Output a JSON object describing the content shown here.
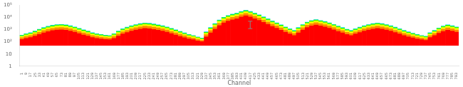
{
  "chart_data": {
    "type": "bar",
    "stacked": true,
    "log": "y",
    "grid": false,
    "xlabel": "Channel",
    "categories": [
      "1",
      "9",
      "17",
      "25",
      "33",
      "41",
      "49",
      "57",
      "65",
      "73",
      "81",
      "89",
      "97",
      "105",
      "113",
      "121",
      "129",
      "137",
      "145",
      "153",
      "161",
      "169",
      "177",
      "185",
      "193",
      "201",
      "209",
      "217",
      "225",
      "233",
      "241",
      "249",
      "257",
      "265",
      "273",
      "281",
      "289",
      "297",
      "305",
      "313",
      "321",
      "329",
      "337",
      "345",
      "353",
      "361",
      "369",
      "377",
      "385",
      "393",
      "401",
      "409",
      "417",
      "425",
      "433",
      "441",
      "449",
      "457",
      "465",
      "473",
      "481",
      "489",
      "497",
      "505",
      "513",
      "521",
      "529",
      "537",
      "545",
      "553",
      "561",
      "569",
      "577",
      "585",
      "593",
      "601",
      "609",
      "617",
      "625",
      "633",
      "641",
      "649",
      "657",
      "665",
      "673",
      "681",
      "689",
      "697",
      "705",
      "713",
      "721",
      "729",
      "737",
      "745",
      "753",
      "761",
      "769",
      "777",
      "785",
      "793"
    ],
    "base": 50,
    "series": [
      {
        "color": "#ff0000",
        "values": [
          105,
          140,
          175,
          245,
          350,
          490,
          630,
          770,
          875,
          910,
          840,
          700,
          560,
          420,
          315,
          245,
          175,
          140,
          122.5,
          105,
          98,
          140,
          245,
          385,
          525,
          700,
          875,
          1050,
          1190,
          1120,
          980,
          840,
          700,
          560,
          420,
          315,
          227.5,
          168,
          122.5,
          98,
          70,
          52.5,
          210,
          490,
          1050,
          2100,
          3500,
          4900,
          6300,
          7700,
          10500,
          13300,
          10500,
          7700,
          5600,
          3850,
          2625,
          1750,
          1225,
          840,
          560,
          385,
          280,
          490,
          875,
          1400,
          1925,
          2275,
          1925,
          1575,
          1225,
          910,
          665,
          490,
          350,
          280,
          385,
          525,
          700,
          875,
          1050,
          1190,
          1050,
          875,
          700,
          525,
          385,
          280,
          210,
          157.5,
          122.5,
          98,
          80.5,
          175,
          280,
          455,
          665,
          840,
          700,
          560
        ]
      },
      {
        "color": "#ff8800",
        "values": [
          60,
          80,
          100,
          140,
          200,
          280,
          360,
          440,
          500,
          520,
          480,
          400,
          320,
          240,
          180,
          140,
          100,
          80,
          70,
          60,
          56,
          80,
          140,
          220,
          300,
          400,
          500,
          600,
          680,
          640,
          560,
          480,
          400,
          320,
          240,
          180,
          130,
          96,
          70,
          56,
          40,
          30,
          120,
          280,
          600,
          1200,
          2000,
          2800,
          3600,
          4400,
          6000,
          7600,
          6000,
          4400,
          3200,
          2200,
          1500,
          1000,
          700,
          480,
          320,
          220,
          160,
          280,
          500,
          800,
          1100,
          1300,
          1100,
          900,
          700,
          520,
          380,
          280,
          200,
          160,
          220,
          300,
          400,
          500,
          600,
          680,
          600,
          500,
          400,
          300,
          220,
          160,
          120,
          90,
          70,
          56,
          46,
          100,
          160,
          260,
          380,
          480,
          400,
          320
        ]
      },
      {
        "color": "#ffff00",
        "values": [
          45,
          60,
          75,
          105,
          150,
          210,
          270,
          330,
          375,
          390,
          360,
          300,
          240,
          180,
          135,
          105,
          75,
          60,
          52.5,
          45,
          42,
          60,
          105,
          165,
          225,
          300,
          375,
          450,
          510,
          480,
          420,
          360,
          300,
          240,
          180,
          135,
          97.5,
          72,
          52.5,
          42,
          30,
          22.5,
          90,
          210,
          450,
          900,
          1500,
          2100,
          2700,
          3300,
          4500,
          5700,
          4500,
          3300,
          2400,
          1650,
          1125,
          750,
          525,
          360,
          240,
          165,
          120,
          210,
          375,
          600,
          825,
          975,
          825,
          675,
          525,
          390,
          285,
          210,
          150,
          120,
          165,
          225,
          300,
          375,
          450,
          510,
          450,
          375,
          300,
          225,
          165,
          120,
          90,
          67.5,
          52.5,
          42,
          34.5,
          75,
          120,
          195,
          285,
          360,
          300,
          240
        ]
      },
      {
        "color": "#aaff00",
        "values": [
          36,
          48,
          60,
          84,
          120,
          168,
          216,
          264,
          300,
          312,
          288,
          240,
          192,
          144,
          108,
          84,
          60,
          48,
          42,
          36,
          33.6,
          48,
          84,
          132,
          180,
          240,
          300,
          360,
          408,
          384,
          336,
          288,
          240,
          192,
          144,
          108,
          78,
          57.6,
          42,
          33.6,
          24,
          18,
          72,
          168,
          360,
          720,
          1200,
          1680,
          2160,
          2640,
          3600,
          4560,
          3600,
          2640,
          1920,
          1320,
          900,
          600,
          420,
          288,
          192,
          132,
          96,
          168,
          300,
          480,
          660,
          780,
          660,
          540,
          420,
          312,
          228,
          168,
          120,
          96,
          132,
          180,
          240,
          300,
          360,
          408,
          360,
          300,
          240,
          180,
          132,
          96,
          72,
          54,
          42,
          33.6,
          27.6,
          60,
          96,
          156,
          228,
          288,
          240,
          192
        ]
      },
      {
        "color": "#00ff00",
        "values": [
          30,
          40,
          50,
          70,
          100,
          140,
          180,
          220,
          250,
          260,
          240,
          200,
          160,
          120,
          90,
          70,
          50,
          40,
          35,
          30,
          28,
          40,
          70,
          110,
          150,
          200,
          250,
          300,
          340,
          320,
          280,
          240,
          200,
          160,
          120,
          90,
          65,
          48,
          35,
          28,
          20,
          15,
          60,
          140,
          300,
          600,
          1000,
          1400,
          1800,
          2200,
          3000,
          3800,
          3000,
          2200,
          1600,
          1100,
          750,
          500,
          350,
          240,
          160,
          110,
          80,
          140,
          250,
          400,
          550,
          650,
          550,
          450,
          350,
          260,
          190,
          140,
          100,
          80,
          110,
          150,
          200,
          250,
          300,
          340,
          300,
          250,
          200,
          150,
          110,
          80,
          60,
          45,
          35,
          28,
          23,
          50,
          80,
          130,
          190,
          240,
          200,
          160
        ]
      },
      {
        "color": "#00ccff",
        "values": [
          24,
          32,
          40,
          56,
          80,
          112,
          144,
          176,
          200,
          208,
          192,
          160,
          128,
          96,
          72,
          56,
          40,
          32,
          28,
          24,
          22.4,
          32,
          56,
          88,
          120,
          160,
          200,
          240,
          272,
          256,
          224,
          192,
          160,
          128,
          96,
          72,
          52,
          38.4,
          28,
          22.4,
          16,
          12,
          48,
          112,
          240,
          480,
          800,
          1120,
          1440,
          1760,
          2400,
          3040,
          2400,
          1760,
          1280,
          880,
          600,
          400,
          280,
          192,
          128,
          88,
          64,
          112,
          200,
          320,
          440,
          520,
          440,
          360,
          280,
          208,
          152,
          112,
          80,
          64,
          88,
          120,
          160,
          200,
          240,
          272,
          240,
          200,
          160,
          120,
          88,
          64,
          48,
          36,
          28,
          22.4,
          18.4,
          40,
          64,
          104,
          152,
          192,
          160,
          128
        ]
      }
    ],
    "error_bars": [
      {
        "category": "417",
        "value": 3000,
        "error": 1800,
        "color": "#888888"
      }
    ],
    "ylim": [
      1,
      100000
    ],
    "yticks": [
      1,
      10,
      {
        "value": 100,
        "label": "10²"
      },
      {
        "value": 1000,
        "label": "10³"
      },
      {
        "value": 10000,
        "label": "10⁴"
      },
      {
        "value": 100000,
        "label": "10⁵"
      }
    ]
  }
}
